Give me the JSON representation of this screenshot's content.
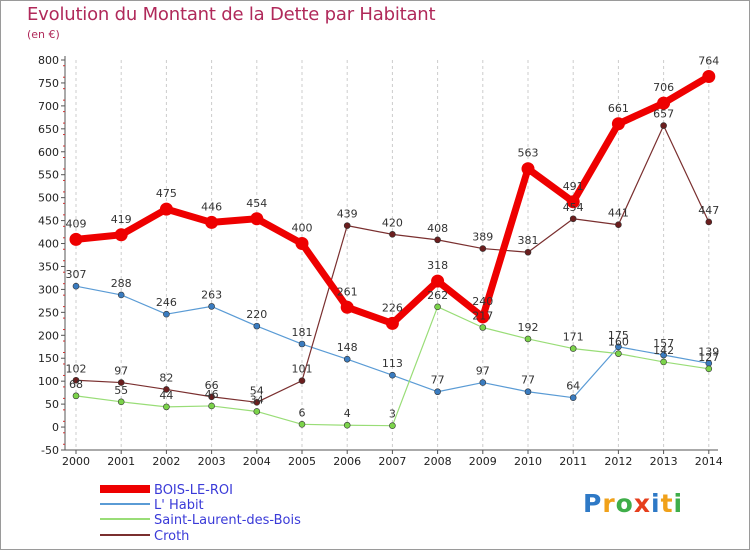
{
  "title": "Evolution du Montant de la Dette par Habitant",
  "subtitle": "(en €)",
  "logo": {
    "text": "Proxiti",
    "letters": [
      "P",
      "r",
      "o",
      "x",
      "i",
      "t",
      "i"
    ]
  },
  "chart_data": {
    "type": "line",
    "x": [
      "2000",
      "2001",
      "2002",
      "2003",
      "2004",
      "2005",
      "2006",
      "2007",
      "2008",
      "2009",
      "2010",
      "2011",
      "2012",
      "2013",
      "2014"
    ],
    "ylim": [
      -50,
      800
    ],
    "yticks": [
      -50,
      0,
      50,
      100,
      150,
      200,
      250,
      300,
      350,
      400,
      450,
      500,
      550,
      600,
      650,
      700,
      750,
      800
    ],
    "grid": "vertical dashed",
    "legend_position": "bottom-left",
    "series": [
      {
        "name": "BOIS-LE-ROI",
        "color": "#ee0000",
        "values": [
          409,
          419,
          475,
          446,
          454,
          400,
          261,
          226,
          318,
          240,
          563,
          491,
          661,
          706,
          764
        ]
      },
      {
        "name": "L' Habit",
        "color": "#5a9bd5",
        "marker": "#3a7cc0",
        "values": [
          307,
          288,
          246,
          263,
          220,
          181,
          148,
          113,
          77,
          97,
          77,
          64,
          175,
          157,
          139
        ]
      },
      {
        "name": "Saint-Laurent-des-Bois",
        "color": "#99dd77",
        "marker": "#7bd34a",
        "values": [
          68,
          55,
          44,
          46,
          34,
          6,
          4,
          3,
          262,
          217,
          192,
          171,
          160,
          142,
          127
        ]
      },
      {
        "name": "Croth",
        "color": "#7a2f2f",
        "marker": "#6b1e1e",
        "values": [
          102,
          97,
          82,
          66,
          54,
          101,
          439,
          420,
          408,
          389,
          381,
          454,
          441,
          657,
          447
        ]
      }
    ]
  }
}
